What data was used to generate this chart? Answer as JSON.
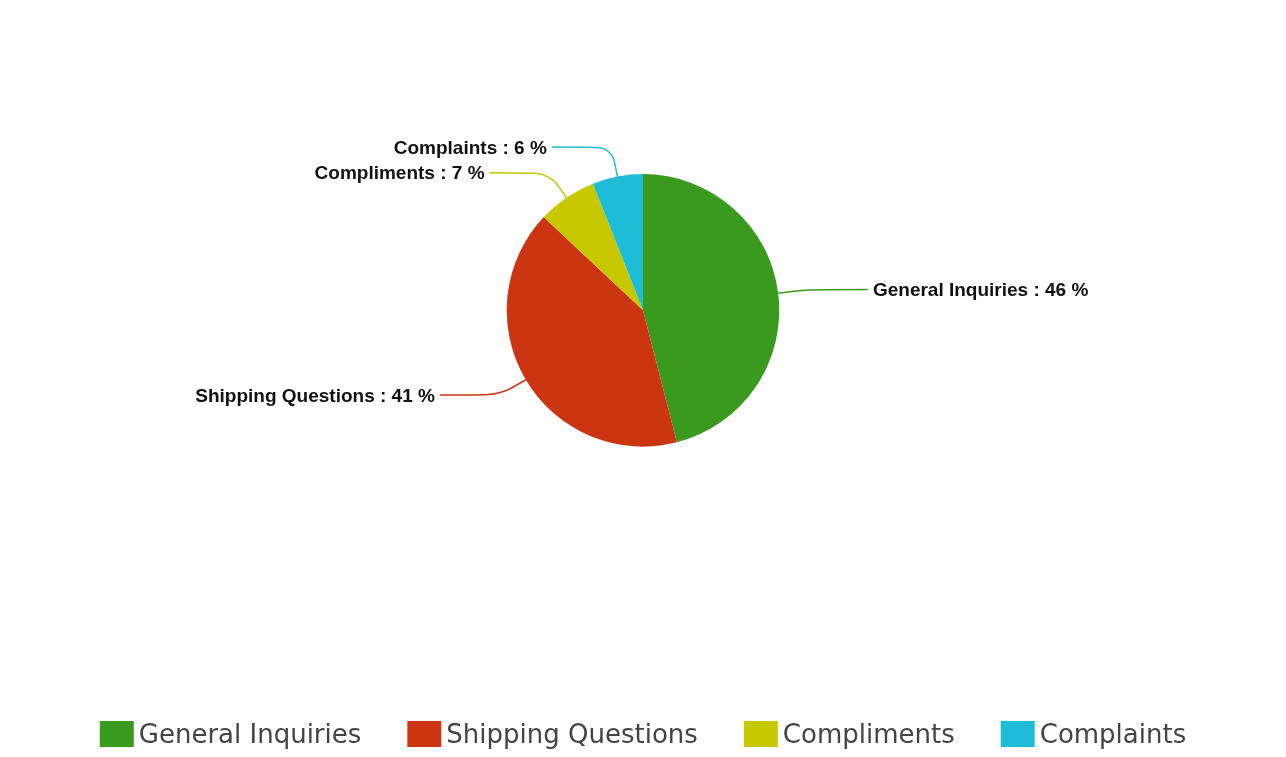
{
  "chart_data": {
    "type": "pie",
    "categories": [
      "General Inquiries",
      "Shipping Questions",
      "Compliments",
      "Complaints"
    ],
    "values": [
      46,
      41,
      7,
      6
    ],
    "colors": [
      "#3a9a1e",
      "#cc3512",
      "#c8c800",
      "#1fbcd8"
    ],
    "value_labels": [
      "General Inquiries : 46 %",
      "Shipping Questions : 41 %",
      "Compliments : 7 %",
      "Complaints : 6 %"
    ],
    "legend": "bottom"
  }
}
